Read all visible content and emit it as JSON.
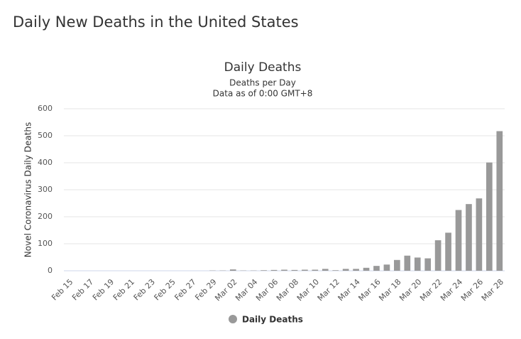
{
  "heading": "Daily New Deaths in the United States",
  "chart_data": {
    "type": "bar",
    "title": "Daily Deaths",
    "subtitle": [
      "Deaths per Day",
      "Data as of 0:00 GMT+8"
    ],
    "y_label": "Novel Coronavirus Daily Deaths",
    "categories": [
      "Feb 15",
      null,
      "Feb 17",
      null,
      "Feb 19",
      null,
      "Feb 21",
      null,
      "Feb 23",
      null,
      "Feb 25",
      null,
      "Feb 27",
      null,
      "Feb 29",
      null,
      "Mar 02",
      null,
      "Mar 04",
      null,
      "Mar 06",
      null,
      "Mar 08",
      null,
      "Mar 10",
      null,
      "Mar 12",
      null,
      "Mar 14",
      null,
      "Mar 16",
      null,
      "Mar 18",
      null,
      "Mar 20",
      null,
      "Mar 22",
      null,
      "Mar 24",
      null,
      "Mar 26",
      null,
      "Mar 28"
    ],
    "series": [
      {
        "name": "Daily Deaths",
        "color": "#999999",
        "values": [
          0,
          0,
          0,
          0,
          0,
          0,
          0,
          0,
          0,
          0,
          0,
          0,
          0,
          0,
          1,
          1,
          5,
          1,
          1,
          2,
          3,
          4,
          3,
          4,
          4,
          7,
          2,
          7,
          7,
          11,
          18,
          23,
          40,
          56,
          49,
          46,
          113,
          141,
          225,
          247,
          268,
          401,
          517
        ]
      }
    ],
    "ylim": [
      0,
      600
    ],
    "yticks": [
      0,
      100,
      200,
      300,
      400,
      500,
      600
    ],
    "grid": true
  }
}
